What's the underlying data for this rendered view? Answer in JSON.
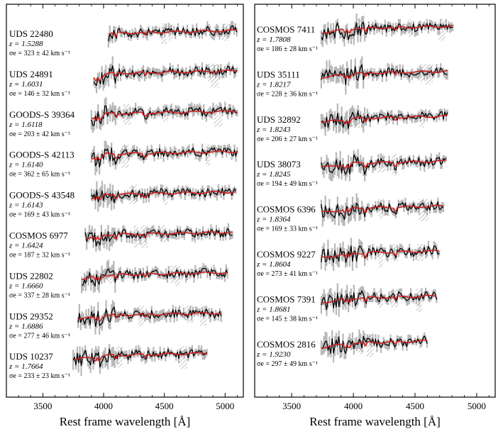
{
  "chart_data": [
    {
      "type": "line",
      "xlabel": "Rest frame wavelength [Å]",
      "ylabel": "",
      "xlim": [
        3200,
        5150
      ],
      "xticks": [
        3500,
        4000,
        4500,
        5000
      ],
      "xtick_labels": [
        "3500",
        "4000",
        "4500",
        "5000"
      ],
      "grid": false,
      "spectra": [
        {
          "name": "UDS 22480",
          "z": "z = 1.5288",
          "sigma": "σe = 323 ± 42 km s⁻¹",
          "range": [
            4040,
            5100
          ],
          "offset": 0.0
        },
        {
          "name": "UDS 24891",
          "z": "z = 1.6031",
          "sigma": "σe = 146 ± 32 km s⁻¹",
          "range": [
            3920,
            5100
          ],
          "offset": 1.0
        },
        {
          "name": "GOODS-S 39364",
          "z": "z = 1.6118",
          "sigma": "σe = 203 ± 42 km s⁻¹",
          "range": [
            3900,
            5100
          ],
          "offset": 2.0
        },
        {
          "name": "GOODS-S 42113",
          "z": "z = 1.6140",
          "sigma": "σe = 362 ± 65 km s⁻¹",
          "range": [
            3900,
            5100
          ],
          "offset": 3.0
        },
        {
          "name": "GOODS-S 43548",
          "z": "z = 1.6143",
          "sigma": "σe = 169 ± 43 km s⁻¹",
          "range": [
            3900,
            5090
          ],
          "offset": 4.0
        },
        {
          "name": "COSMOS 6977",
          "z": "z = 1.6424",
          "sigma": "σe = 187 ± 32 km s⁻¹",
          "range": [
            3850,
            5060
          ],
          "offset": 5.0
        },
        {
          "name": "UDS 22802",
          "z": "z = 1.6660",
          "sigma": "σe = 337 ± 28 km s⁻¹",
          "range": [
            3820,
            5020
          ],
          "offset": 6.0
        },
        {
          "name": "UDS 29352",
          "z": "z = 1.6886",
          "sigma": "σe = 277 ± 46 km s⁻¹",
          "range": [
            3790,
            4970
          ],
          "offset": 7.0
        },
        {
          "name": "UDS 10237",
          "z": "z = 1.7664",
          "sigma": "σe = 233 ± 23 km s⁻¹",
          "range": [
            3750,
            4850
          ],
          "offset": 8.0
        }
      ]
    },
    {
      "type": "line",
      "xlabel": "Rest frame wavelength [Å]",
      "ylabel": "",
      "xlim": [
        3200,
        5150
      ],
      "xticks": [
        3500,
        4000,
        4500,
        5000
      ],
      "xtick_labels": [
        "3500",
        "4000",
        "4500",
        "5000"
      ],
      "grid": false,
      "spectra": [
        {
          "name": "COSMOS 7411",
          "z": "z = 1.7808",
          "sigma": "σe = 186 ± 28 km s⁻¹",
          "range": [
            3740,
            4810
          ],
          "offset": 0.0
        },
        {
          "name": "UDS 35111",
          "z": "z = 1.8217",
          "sigma": "σe = 228 ± 36 km s⁻¹",
          "range": [
            3740,
            4770
          ],
          "offset": 1.0
        },
        {
          "name": "UDS 32892",
          "z": "z = 1.8243",
          "sigma": "σe = 206 ± 27 km s⁻¹",
          "range": [
            3740,
            4770
          ],
          "offset": 2.0
        },
        {
          "name": "UDS 38073",
          "z": "z = 1.8245",
          "sigma": "σe = 194 ± 49 km s⁻¹",
          "range": [
            3740,
            4760
          ],
          "offset": 3.0
        },
        {
          "name": "COSMOS 6396",
          "z": "z = 1.8364",
          "sigma": "σe = 169 ± 33 km s⁻¹",
          "range": [
            3740,
            4730
          ],
          "offset": 4.0
        },
        {
          "name": "COSMOS 9227",
          "z": "z = 1.8604",
          "sigma": "σe = 273 ± 41 km s⁻¹",
          "range": [
            3740,
            4700
          ],
          "offset": 5.0
        },
        {
          "name": "COSMOS 7391",
          "z": "z = 1.8681",
          "sigma": "σe = 145 ± 38 km s⁻¹",
          "range": [
            3740,
            4680
          ],
          "offset": 6.0
        },
        {
          "name": "COSMOS 2816",
          "z": "z = 1.9230",
          "sigma": "σe = 297 ± 49 km s⁻¹",
          "range": [
            3740,
            4600
          ],
          "offset": 7.0
        }
      ]
    }
  ],
  "colors": {
    "model": "#cc2222",
    "observed": "#000000",
    "error": "#b8b8b8",
    "masked": "#bbbbbb"
  }
}
